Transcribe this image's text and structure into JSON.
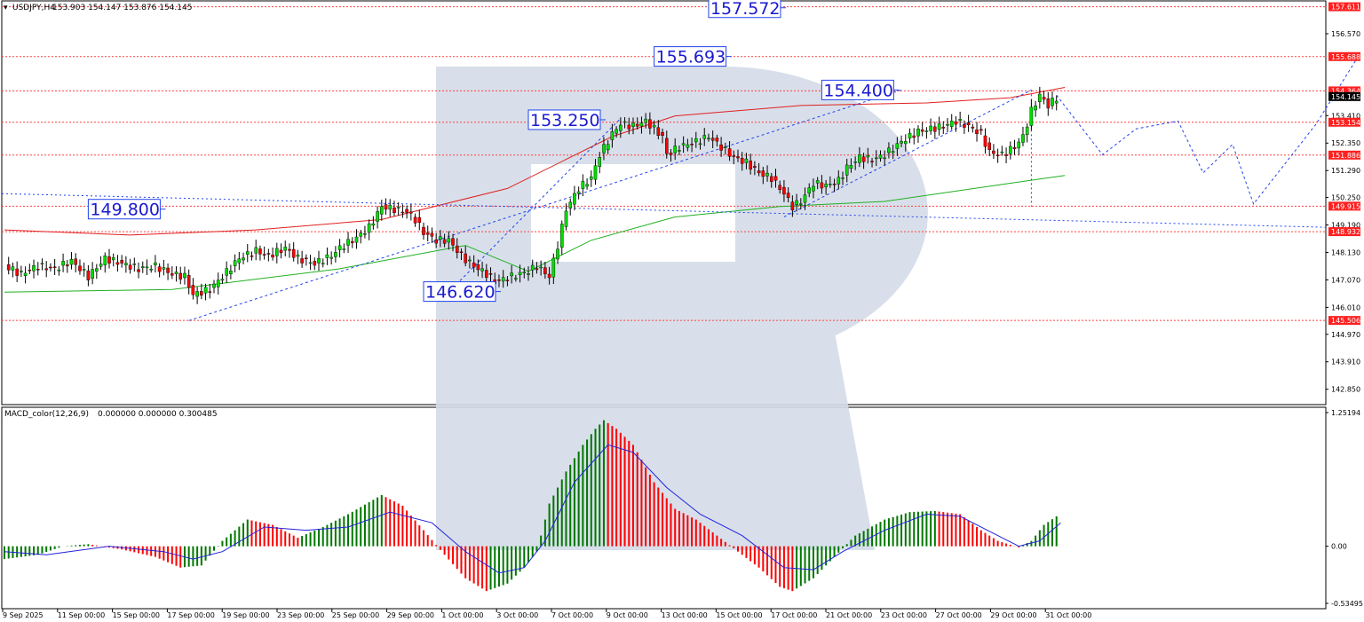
{
  "symbol_header": {
    "title": "USDJPY,H4",
    "ohlc": "153.903 154.147 153.876 154.145"
  },
  "macd_header": {
    "title": "MACD_color(12,26,9)",
    "values": "0.000000 0.000000 0.300485"
  },
  "colors": {
    "bull": "#00dd00",
    "bear": "#ff0000",
    "macd_bull": "#007700",
    "macd_bear": "#ff0000",
    "signal": "#2222dd",
    "level_line": "#ff4040",
    "label_bg": "#ff2020",
    "forecast": "#2244ee",
    "ma_red": "#e02020",
    "ma_green": "#20b020",
    "watermark": "#d4dce8"
  },
  "chart_data": [
    {
      "type": "candlestick",
      "title": "USDJPY,H4",
      "x_ticks": [
        "9 Sep 2025",
        "11 Sep 00:00",
        "15 Sep 00:00",
        "17 Sep 00:00",
        "19 Sep 00:00",
        "23 Sep 00:00",
        "25 Sep 00:00",
        "29 Sep 00:00",
        "1 Oct 00:00",
        "3 Oct 00:00",
        "7 Oct 00:00",
        "9 Oct 00:00",
        "13 Oct 00:00",
        "15 Oct 00:00",
        "17 Oct 00:00",
        "21 Oct 00:00",
        "23 Oct 00:00",
        "27 Oct 00:00",
        "29 Oct 00:00",
        "31 Oct 00:00"
      ],
      "y_ticks": [
        "156.570",
        "153.410",
        "152.350",
        "151.290",
        "150.250",
        "149.190",
        "148.130",
        "147.070",
        "146.010",
        "144.970",
        "143.910",
        "142.850"
      ],
      "ylim": [
        142.6,
        157.7
      ],
      "close_path": [
        [
          0,
          147.6
        ],
        [
          4,
          147.3
        ],
        [
          8,
          147.6
        ],
        [
          12,
          147.5
        ],
        [
          16,
          147.8
        ],
        [
          20,
          147.2
        ],
        [
          24,
          147.9
        ],
        [
          28,
          147.7
        ],
        [
          32,
          147.5
        ],
        [
          36,
          147.6
        ],
        [
          40,
          147.3
        ],
        [
          43,
          147.2
        ],
        [
          45,
          146.5
        ],
        [
          49,
          146.7
        ],
        [
          52,
          147.2
        ],
        [
          56,
          147.9
        ],
        [
          60,
          148.2
        ],
        [
          63,
          148.0
        ],
        [
          67,
          148.3
        ],
        [
          70,
          147.9
        ],
        [
          74,
          147.7
        ],
        [
          78,
          148.0
        ],
        [
          80,
          148.3
        ],
        [
          84,
          148.7
        ],
        [
          87,
          149.1
        ],
        [
          90,
          149.9
        ],
        [
          93,
          149.8
        ],
        [
          96,
          149.7
        ],
        [
          98,
          149.4
        ],
        [
          100,
          148.9
        ],
        [
          103,
          148.6
        ],
        [
          106,
          148.6
        ],
        [
          109,
          148.0
        ],
        [
          112,
          147.6
        ],
        [
          115,
          147.3
        ],
        [
          117,
          147.0
        ],
        [
          121,
          147.2
        ],
        [
          125,
          147.4
        ],
        [
          127,
          147.6
        ],
        [
          130,
          147.2
        ],
        [
          132,
          148.4
        ],
        [
          134,
          149.8
        ],
        [
          137,
          150.6
        ],
        [
          140,
          151.0
        ],
        [
          142,
          151.9
        ],
        [
          145,
          152.7
        ],
        [
          147,
          153.1
        ],
        [
          150,
          153.0
        ],
        [
          153,
          153.2
        ],
        [
          155,
          152.9
        ],
        [
          157,
          152.6
        ],
        [
          158,
          151.9
        ],
        [
          161,
          152.2
        ],
        [
          165,
          152.4
        ],
        [
          168,
          152.6
        ],
        [
          171,
          152.2
        ],
        [
          174,
          151.8
        ],
        [
          177,
          151.6
        ],
        [
          180,
          151.2
        ],
        [
          183,
          151.0
        ],
        [
          186,
          150.4
        ],
        [
          188,
          149.9
        ],
        [
          190,
          150.1
        ],
        [
          193,
          150.8
        ],
        [
          196,
          150.7
        ],
        [
          199,
          150.9
        ],
        [
          201,
          151.4
        ],
        [
          204,
          151.8
        ],
        [
          207,
          151.7
        ],
        [
          210,
          151.9
        ],
        [
          214,
          152.4
        ],
        [
          218,
          152.8
        ],
        [
          221,
          152.9
        ],
        [
          224,
          153.0
        ],
        [
          227,
          153.2
        ],
        [
          230,
          153.0
        ],
        [
          233,
          152.7
        ],
        [
          235,
          152.0
        ],
        [
          238,
          151.9
        ],
        [
          241,
          152.2
        ],
        [
          243,
          152.6
        ],
        [
          245,
          153.6
        ],
        [
          247,
          154.2
        ],
        [
          249,
          153.8
        ],
        [
          251,
          154.1
        ]
      ],
      "horizontal_levels": [
        {
          "value": 157.611,
          "label": "157.611"
        },
        {
          "value": 155.688,
          "label": "155.688"
        },
        {
          "value": 154.364,
          "label": "154.364"
        },
        {
          "value": 153.154,
          "label": "153.154"
        },
        {
          "value": 151.886,
          "label": "151.886"
        },
        {
          "value": 149.915,
          "label": "149.915"
        },
        {
          "value": 148.932,
          "label": "148.932"
        },
        {
          "value": 145.506,
          "label": "145.506"
        }
      ],
      "current_price_labels": [
        "154.145"
      ],
      "annotations": [
        {
          "text": "157.572",
          "x": 168,
          "y": 157.572
        },
        {
          "text": "155.693",
          "x": 155,
          "y": 155.693
        },
        {
          "text": "154.400",
          "x": 195,
          "y": 154.4
        },
        {
          "text": "153.250",
          "x": 125,
          "y": 153.25
        },
        {
          "text": "149.800",
          "x": 20,
          "y": 149.8
        },
        {
          "text": "146.620",
          "x": 100,
          "y": 146.62
        }
      ],
      "forecast_path": [
        [
          251,
          154.2
        ],
        [
          262,
          151.9
        ],
        [
          270,
          152.9
        ],
        [
          280,
          153.2
        ],
        [
          286,
          151.2
        ],
        [
          293,
          152.3
        ],
        [
          298,
          150.0
        ],
        [
          313,
          153.1
        ],
        [
          323,
          155.7
        ]
      ],
      "ma_red": [
        [
          0,
          149.0
        ],
        [
          30,
          148.8
        ],
        [
          60,
          149.0
        ],
        [
          90,
          149.4
        ],
        [
          120,
          150.6
        ],
        [
          145,
          152.6
        ],
        [
          160,
          153.4
        ],
        [
          190,
          153.8
        ],
        [
          220,
          153.9
        ],
        [
          240,
          154.1
        ],
        [
          253,
          154.5
        ]
      ],
      "ma_green": [
        [
          0,
          146.6
        ],
        [
          40,
          146.7
        ],
        [
          80,
          147.5
        ],
        [
          110,
          148.4
        ],
        [
          125,
          147.4
        ],
        [
          140,
          148.6
        ],
        [
          160,
          149.5
        ],
        [
          185,
          149.9
        ],
        [
          210,
          150.1
        ],
        [
          240,
          150.8
        ],
        [
          253,
          151.1
        ]
      ]
    },
    {
      "type": "bar",
      "title": "MACD_color(12,26,9)",
      "y_ticks": [
        "1.25194",
        "0.00",
        "-0.53495"
      ],
      "ylim": [
        -0.53495,
        1.25194
      ],
      "histogram_path": [
        [
          0,
          -0.12
        ],
        [
          8,
          -0.08
        ],
        [
          14,
          0.0
        ],
        [
          20,
          0.02
        ],
        [
          28,
          -0.03
        ],
        [
          36,
          -0.1
        ],
        [
          42,
          -0.2
        ],
        [
          47,
          -0.18
        ],
        [
          52,
          0.05
        ],
        [
          58,
          0.25
        ],
        [
          64,
          0.2
        ],
        [
          70,
          0.08
        ],
        [
          76,
          0.18
        ],
        [
          82,
          0.3
        ],
        [
          90,
          0.48
        ],
        [
          95,
          0.38
        ],
        [
          100,
          0.15
        ],
        [
          105,
          -0.08
        ],
        [
          110,
          -0.3
        ],
        [
          115,
          -0.42
        ],
        [
          120,
          -0.35
        ],
        [
          124,
          -0.2
        ],
        [
          127,
          -0.05
        ],
        [
          130,
          0.4
        ],
        [
          134,
          0.7
        ],
        [
          138,
          0.95
        ],
        [
          141,
          1.1
        ],
        [
          143,
          1.18
        ],
        [
          146,
          1.1
        ],
        [
          150,
          0.95
        ],
        [
          155,
          0.6
        ],
        [
          160,
          0.35
        ],
        [
          165,
          0.25
        ],
        [
          170,
          0.1
        ],
        [
          175,
          -0.05
        ],
        [
          180,
          -0.2
        ],
        [
          185,
          -0.38
        ],
        [
          188,
          -0.42
        ],
        [
          193,
          -0.3
        ],
        [
          198,
          -0.1
        ],
        [
          203,
          0.1
        ],
        [
          210,
          0.25
        ],
        [
          216,
          0.32
        ],
        [
          222,
          0.33
        ],
        [
          228,
          0.3
        ],
        [
          233,
          0.15
        ],
        [
          237,
          0.05
        ],
        [
          242,
          -0.01
        ],
        [
          245,
          0.05
        ],
        [
          248,
          0.2
        ],
        [
          251,
          0.28
        ]
      ],
      "signal_path": [
        [
          0,
          -0.05
        ],
        [
          10,
          -0.08
        ],
        [
          25,
          0.0
        ],
        [
          38,
          -0.05
        ],
        [
          45,
          -0.12
        ],
        [
          52,
          -0.05
        ],
        [
          62,
          0.18
        ],
        [
          72,
          0.15
        ],
        [
          82,
          0.18
        ],
        [
          92,
          0.32
        ],
        [
          102,
          0.22
        ],
        [
          110,
          -0.05
        ],
        [
          118,
          -0.25
        ],
        [
          124,
          -0.2
        ],
        [
          129,
          0.05
        ],
        [
          136,
          0.6
        ],
        [
          144,
          0.95
        ],
        [
          150,
          0.88
        ],
        [
          158,
          0.55
        ],
        [
          166,
          0.3
        ],
        [
          176,
          0.1
        ],
        [
          186,
          -0.2
        ],
        [
          193,
          -0.22
        ],
        [
          200,
          -0.05
        ],
        [
          210,
          0.15
        ],
        [
          220,
          0.3
        ],
        [
          228,
          0.28
        ],
        [
          236,
          0.12
        ],
        [
          242,
          0.0
        ],
        [
          247,
          0.05
        ],
        [
          252,
          0.22
        ]
      ]
    }
  ]
}
